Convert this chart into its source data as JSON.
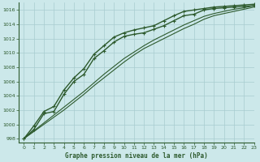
{
  "title": "Graphe pression niveau de la mer (hPa)",
  "bg_color": "#cce8ea",
  "grid_color": "#a8cccf",
  "line_color": "#2d5a2d",
  "xlim": [
    -0.5,
    23
  ],
  "ylim": [
    997.5,
    1017
  ],
  "xticks": [
    0,
    1,
    2,
    3,
    4,
    5,
    6,
    7,
    8,
    9,
    10,
    11,
    12,
    13,
    14,
    15,
    16,
    17,
    18,
    19,
    20,
    21,
    22,
    23
  ],
  "yticks": [
    998,
    1000,
    1002,
    1004,
    1006,
    1008,
    1010,
    1012,
    1014,
    1016
  ],
  "series": [
    {
      "y": [
        998.0,
        999.3,
        1001.5,
        1001.8,
        1004.2,
        1006.0,
        1007.0,
        1009.2,
        1010.3,
        1011.5,
        1012.3,
        1012.6,
        1012.8,
        1013.3,
        1013.8,
        1014.5,
        1015.2,
        1015.4,
        1016.0,
        1016.2,
        1016.3,
        1016.4,
        1016.5,
        1016.6
      ],
      "marker": "+",
      "lw": 1.0
    },
    {
      "y": [
        998.0,
        999.8,
        1001.8,
        1002.5,
        1004.8,
        1006.5,
        1007.8,
        1009.8,
        1011.0,
        1012.2,
        1012.8,
        1013.2,
        1013.5,
        1013.8,
        1014.5,
        1015.2,
        1015.8,
        1016.0,
        1016.2,
        1016.4,
        1016.5,
        1016.6,
        1016.7,
        1016.8
      ],
      "marker": "+",
      "lw": 1.0
    },
    {
      "y": [
        998.0,
        999.0,
        1000.0,
        1001.0,
        1002.0,
        1003.1,
        1004.2,
        1005.4,
        1006.5,
        1007.6,
        1008.7,
        1009.7,
        1010.6,
        1011.3,
        1012.0,
        1012.7,
        1013.4,
        1014.0,
        1014.7,
        1015.2,
        1015.5,
        1015.8,
        1016.1,
        1016.4
      ],
      "marker": null,
      "lw": 0.8
    },
    {
      "y": [
        998.0,
        999.1,
        1000.2,
        1001.3,
        1002.4,
        1003.5,
        1004.6,
        1005.8,
        1007.0,
        1008.1,
        1009.2,
        1010.1,
        1011.0,
        1011.8,
        1012.5,
        1013.2,
        1013.9,
        1014.5,
        1015.1,
        1015.5,
        1015.8,
        1016.1,
        1016.3,
        1016.6
      ],
      "marker": null,
      "lw": 0.8
    }
  ]
}
